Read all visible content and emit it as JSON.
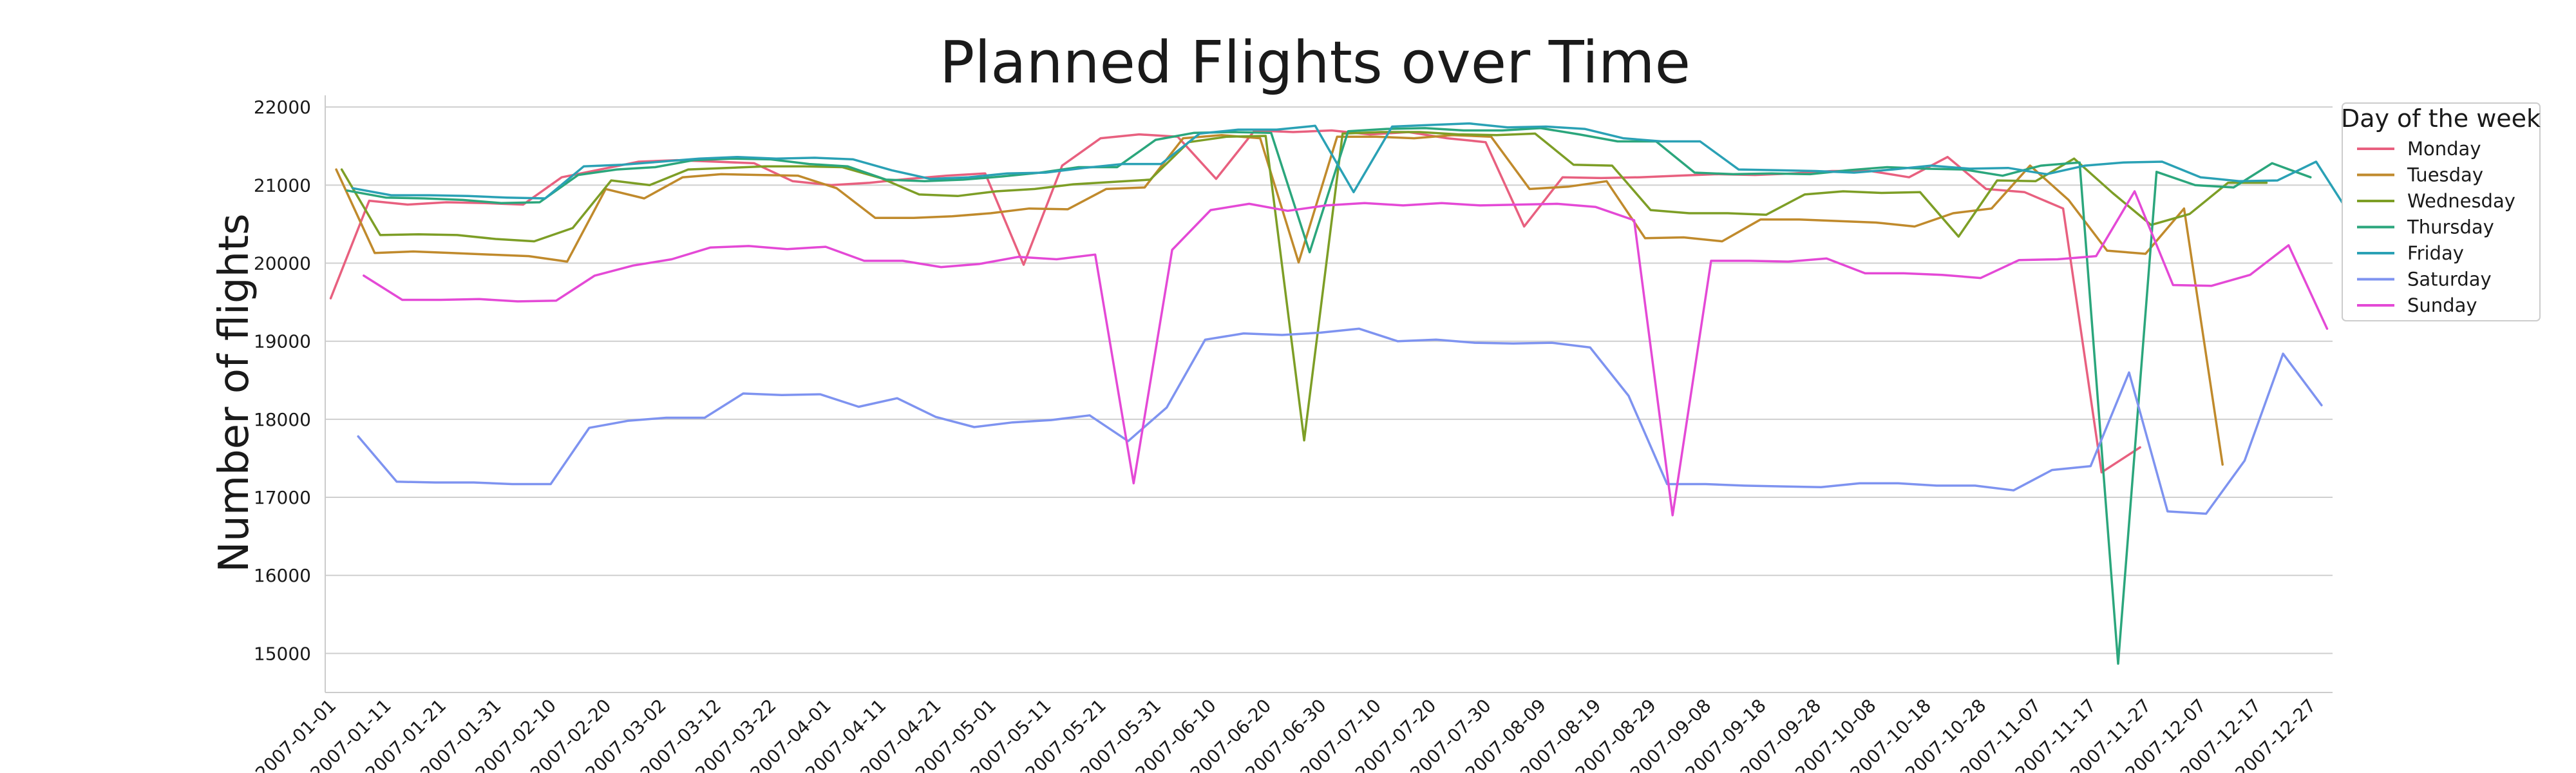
{
  "chart_data": {
    "type": "line",
    "title": "Planned Flights over Time",
    "xlabel": "",
    "ylabel": "Number of flights",
    "x_tick_labels": [
      "2007-01-01",
      "2007-01-11",
      "2007-01-21",
      "2007-01-31",
      "2007-02-10",
      "2007-02-20",
      "2007-03-02",
      "2007-03-12",
      "2007-03-22",
      "2007-04-01",
      "2007-04-11",
      "2007-04-21",
      "2007-05-01",
      "2007-05-11",
      "2007-05-21",
      "2007-05-31",
      "2007-06-10",
      "2007-06-20",
      "2007-06-30",
      "2007-07-10",
      "2007-07-20",
      "2007-07-30",
      "2007-08-09",
      "2007-08-19",
      "2007-08-29",
      "2007-09-08",
      "2007-09-18",
      "2007-09-28",
      "2007-10-08",
      "2007-10-18",
      "2007-10-28",
      "2007-11-07",
      "2007-11-17",
      "2007-11-27",
      "2007-12-07",
      "2007-12-17",
      "2007-12-27"
    ],
    "y_ticks": [
      15000,
      16000,
      17000,
      18000,
      19000,
      20000,
      21000,
      22000
    ],
    "xlim": [
      "2006-12-31",
      "2007-12-31"
    ],
    "ylim": [
      14500,
      22150
    ],
    "grid": "horizontal",
    "legend_title": "Day of the week",
    "legend_position": "outside-top-right",
    "series": [
      {
        "name": "Monday",
        "color": "#e8607f",
        "x_start": "2007-01-01",
        "values": [
          19550,
          20800,
          20750,
          20780,
          20770,
          20750,
          21100,
          21200,
          21300,
          21320,
          21300,
          21280,
          21050,
          21000,
          21030,
          21080,
          21120,
          21150,
          19980,
          21250,
          21600,
          21650,
          21620,
          21080,
          21700,
          21680,
          21700,
          21650,
          21680,
          21600,
          21550,
          20470,
          21100,
          21090,
          21100,
          21120,
          21140,
          21130,
          21150,
          21180,
          21180,
          21100,
          21360,
          20950,
          20910,
          20700,
          17320,
          17640
        ]
      },
      {
        "name": "Tuesday",
        "color": "#c08a2c",
        "x_start": "2007-01-02",
        "values": [
          21200,
          20130,
          20150,
          20130,
          20110,
          20090,
          20020,
          20950,
          20830,
          21100,
          21140,
          21130,
          21120,
          20960,
          20580,
          20580,
          20600,
          20640,
          20700,
          20690,
          20950,
          20970,
          21600,
          21640,
          21600,
          20010,
          21620,
          21620,
          21600,
          21640,
          21620,
          20950,
          20980,
          21050,
          20320,
          20330,
          20280,
          20560,
          20560,
          20540,
          20520,
          20470,
          20640,
          20700,
          21250,
          20810,
          20160,
          20120,
          20700,
          17420
        ]
      },
      {
        "name": "Wednesday",
        "color": "#7d9e26",
        "x_start": "2007-01-03",
        "values": [
          21200,
          20360,
          20370,
          20360,
          20310,
          20280,
          20450,
          21060,
          21000,
          21200,
          21220,
          21240,
          21240,
          21230,
          21090,
          20880,
          20860,
          20920,
          20950,
          21010,
          21040,
          21070,
          21550,
          21620,
          21630,
          17730,
          21660,
          21680,
          21680,
          21650,
          21640,
          21660,
          21260,
          21250,
          20680,
          20640,
          20640,
          20620,
          20880,
          20920,
          20900,
          20910,
          20340,
          21060,
          21050,
          21340,
          20900,
          20490,
          20630,
          21030,
          21030
        ]
      },
      {
        "name": "Thursday",
        "color": "#2ba67c",
        "x_start": "2007-01-04",
        "values": [
          20930,
          20840,
          20830,
          20810,
          20770,
          20780,
          21130,
          21200,
          21230,
          21320,
          21340,
          21330,
          21270,
          21240,
          21070,
          21050,
          21070,
          21110,
          21160,
          21230,
          21230,
          21580,
          21670,
          21680,
          21670,
          20140,
          21690,
          21720,
          21730,
          21700,
          21700,
          21730,
          21650,
          21560,
          21560,
          21160,
          21140,
          21150,
          21140,
          21190,
          21230,
          21210,
          21200,
          21120,
          21250,
          21290,
          14870,
          21170,
          21000,
          20970,
          21280,
          21100
        ]
      },
      {
        "name": "Friday",
        "color": "#2aa1b5",
        "x_start": "2007-01-05",
        "values": [
          20960,
          20870,
          20870,
          20860,
          20840,
          20830,
          21240,
          21260,
          21300,
          21340,
          21360,
          21340,
          21350,
          21330,
          21190,
          21080,
          21100,
          21150,
          21160,
          21220,
          21270,
          21270,
          21660,
          21710,
          21710,
          21760,
          20910,
          21750,
          21770,
          21790,
          21740,
          21750,
          21720,
          21600,
          21560,
          21560,
          21200,
          21190,
          21180,
          21160,
          21200,
          21250,
          21210,
          21220,
          21140,
          21250,
          21290,
          21300,
          21100,
          21050,
          21060,
          21300,
          20530
        ]
      },
      {
        "name": "Saturday",
        "color": "#7e93f0",
        "x_start": "2007-01-06",
        "values": [
          17780,
          17200,
          17190,
          17190,
          17170,
          17170,
          17890,
          17980,
          18020,
          18020,
          18330,
          18310,
          18320,
          18160,
          18270,
          18030,
          17900,
          17960,
          17990,
          18050,
          17720,
          18150,
          19020,
          19100,
          19080,
          19110,
          19160,
          19000,
          19020,
          18980,
          18970,
          18980,
          18920,
          18300,
          17170,
          17170,
          17150,
          17140,
          17130,
          17180,
          17180,
          17150,
          17150,
          17090,
          17350,
          17400,
          18600,
          16820,
          16790,
          17470,
          18840,
          18180
        ]
      },
      {
        "name": "Sunday",
        "color": "#e449d6",
        "x_start": "2007-01-07",
        "values": [
          19840,
          19530,
          19530,
          19540,
          19510,
          19520,
          19840,
          19970,
          20050,
          20200,
          20220,
          20180,
          20210,
          20030,
          20030,
          19950,
          19990,
          20080,
          20050,
          20110,
          17180,
          20170,
          20680,
          20760,
          20670,
          20740,
          20770,
          20740,
          20770,
          20740,
          20750,
          20760,
          20720,
          20550,
          16770,
          20030,
          20030,
          20020,
          20060,
          19870,
          19870,
          19850,
          19810,
          20040,
          20050,
          20090,
          20920,
          19720,
          19710,
          19850,
          20230,
          19160
        ]
      }
    ]
  }
}
